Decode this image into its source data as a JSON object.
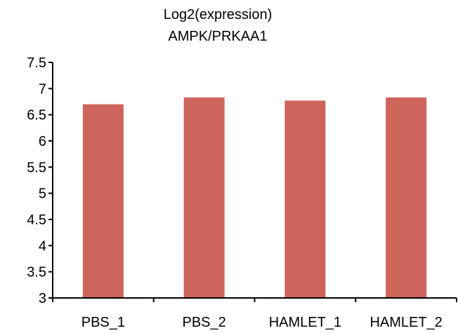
{
  "chart_data": {
    "type": "bar",
    "title": "Log2(expression)",
    "subtitle": "AMPK/PRKAA1",
    "categories": [
      "PBS_1",
      "PBS_2",
      "HAMLET_1",
      "HAMLET_2"
    ],
    "values": [
      6.7,
      6.83,
      6.77,
      6.83
    ],
    "ylim": [
      3,
      7.5
    ],
    "yticks": [
      "3",
      "3.5",
      "4",
      "4.5",
      "5",
      "5.5",
      "6",
      "6.5",
      "7",
      "7.5"
    ],
    "grid": false,
    "bar_color": "#cd655c",
    "axis_color": "#000000"
  }
}
